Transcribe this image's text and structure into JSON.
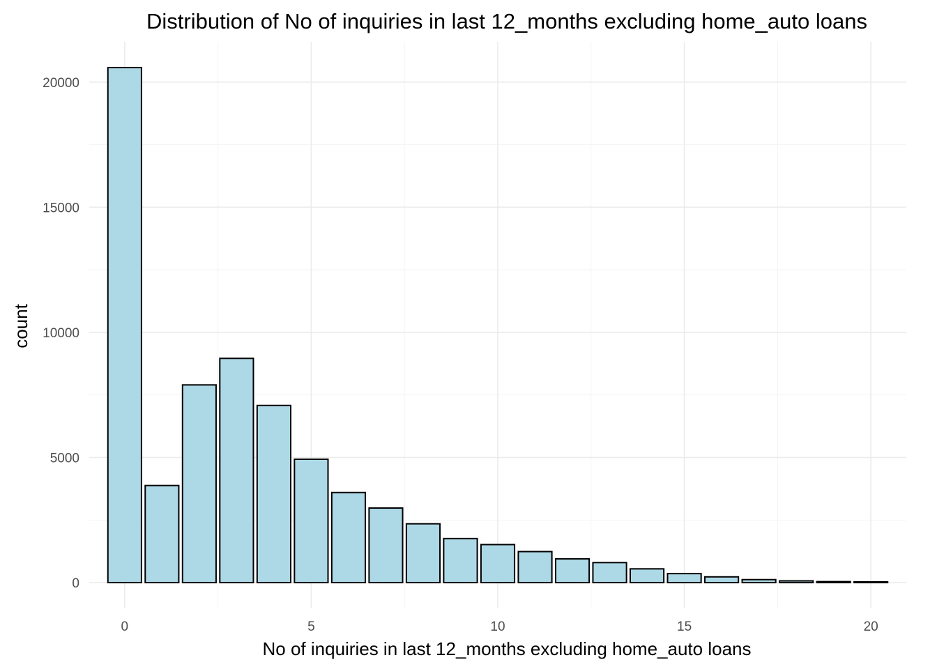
{
  "chart_data": {
    "type": "bar",
    "title": "Distribution of No of inquiries in last 12_months excluding home_auto loans",
    "xlabel": "No of inquiries in last 12_months excluding home_auto loans",
    "ylabel": "count",
    "x": [
      0,
      1,
      2,
      3,
      4,
      5,
      6,
      7,
      8,
      9,
      10,
      11,
      12,
      13,
      14,
      15,
      16,
      17,
      18,
      19,
      20
    ],
    "values": [
      20580,
      3880,
      7900,
      8960,
      7080,
      4930,
      3600,
      2980,
      2350,
      1760,
      1520,
      1240,
      950,
      800,
      550,
      360,
      230,
      120,
      70,
      40,
      30
    ],
    "xlim": [
      -0.95,
      20.95
    ],
    "ylim": [
      -1029,
      21609
    ],
    "x_ticks": [
      0,
      5,
      10,
      15,
      20
    ],
    "x_tick_labels": [
      "0",
      "5",
      "10",
      "15",
      "20"
    ],
    "y_ticks": [
      0,
      5000,
      10000,
      15000,
      20000
    ],
    "y_tick_labels": [
      "0",
      "5000",
      "10000",
      "15000",
      "20000"
    ],
    "grid": true,
    "bar_fill": "#add8e6",
    "bar_outline": "#000000",
    "background": "#ffffff"
  }
}
